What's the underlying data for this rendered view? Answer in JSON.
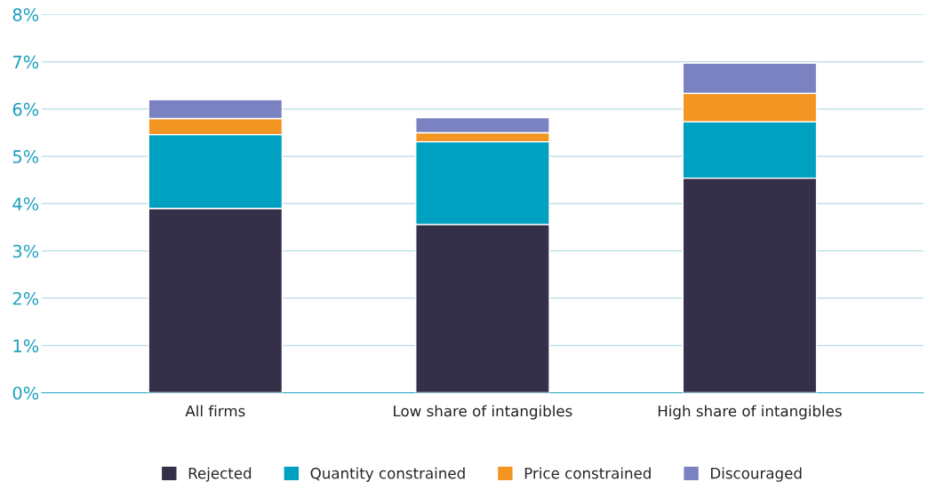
{
  "chart_data": {
    "type": "bar",
    "stacked": true,
    "categories": [
      "All firms",
      "Low share of intangibles",
      "High share of intangibles"
    ],
    "series": [
      {
        "name": "Rejected",
        "color": "#353049",
        "values": [
          3.9,
          3.56,
          4.54
        ]
      },
      {
        "name": "Quantity constrained",
        "color": "#00a0c0",
        "values": [
          1.56,
          1.75,
          1.19
        ]
      },
      {
        "name": "Price constrained",
        "color": "#f39522",
        "values": [
          0.34,
          0.19,
          0.6
        ]
      },
      {
        "name": "Discouraged",
        "color": "#7b82c2",
        "values": [
          0.4,
          0.32,
          0.64
        ]
      }
    ],
    "ylim": [
      0,
      8
    ],
    "yticks": [
      {
        "value": 0,
        "label": "0%"
      },
      {
        "value": 1,
        "label": "1%"
      },
      {
        "value": 2,
        "label": "2%"
      },
      {
        "value": 3,
        "label": "3%"
      },
      {
        "value": 4,
        "label": "4%"
      },
      {
        "value": 5,
        "label": "5%"
      },
      {
        "value": 6,
        "label": "6%"
      },
      {
        "value": 7,
        "label": "7%"
      },
      {
        "value": 8,
        "label": "8%"
      }
    ],
    "grid": "y",
    "legend": "bottom"
  }
}
